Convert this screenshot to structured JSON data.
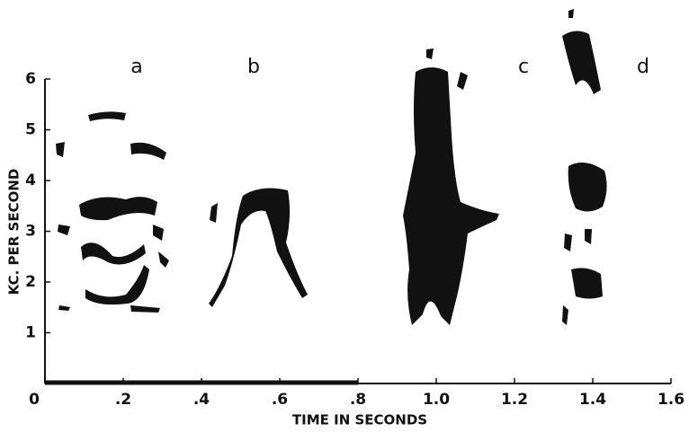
{
  "chart_data": {
    "type": "spectrogram",
    "xlabel": "TIME IN SECONDS",
    "ylabel": "KC. PER SECOND",
    "annotations": [
      "a",
      "b",
      "c",
      "d"
    ],
    "xlim": [
      0,
      1.6
    ],
    "xticks": [
      0,
      {
        "value": 0.2,
        "label": ".2"
      },
      {
        "value": 0.4,
        "label": ".4"
      },
      {
        "value": 0.6,
        "label": ".6"
      },
      {
        "value": 0.8,
        "label": ".8"
      },
      {
        "value": 1,
        "label": "1.0"
      },
      1.2,
      1.4,
      1.6
    ],
    "ylim": [
      0,
      6
    ],
    "yticks": [
      1,
      2,
      3,
      4,
      5,
      6
    ]
  }
}
